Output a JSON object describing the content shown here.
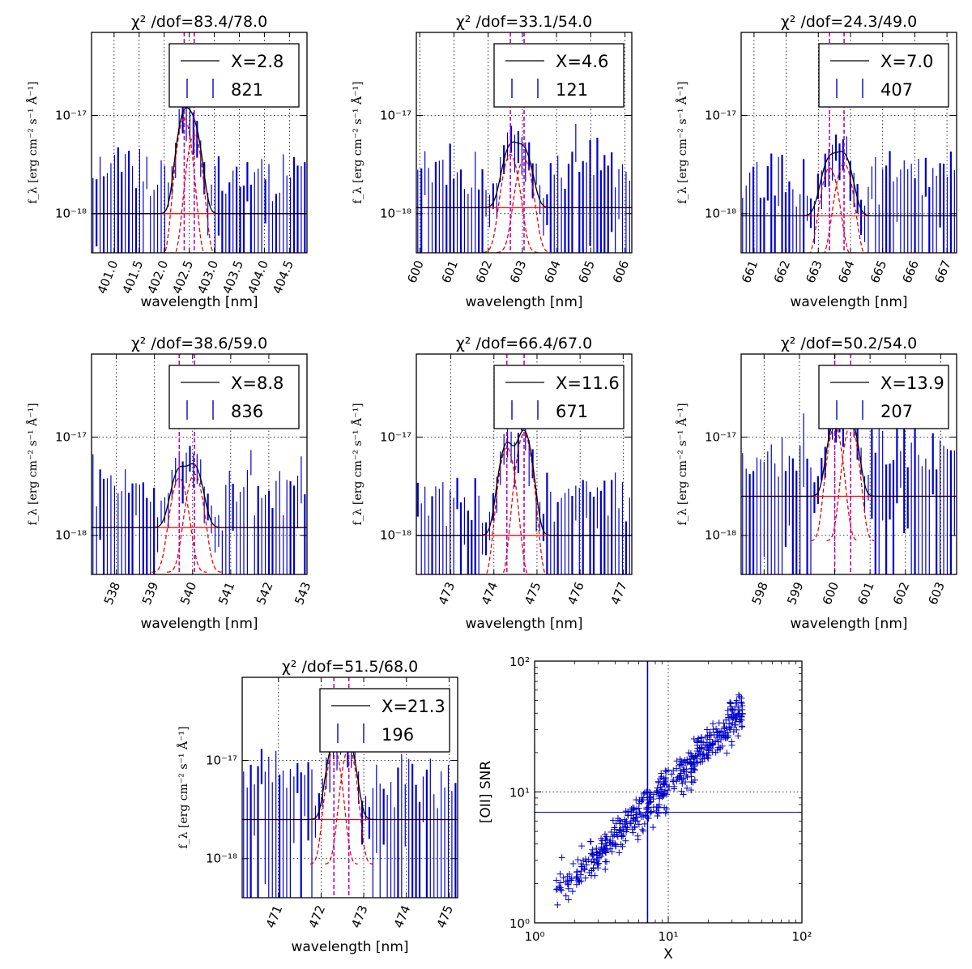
{
  "chart_data": [
    {
      "type": "line",
      "title": "χ² /dof=83.4/78.0",
      "xlabel": "wavelength [nm]",
      "ylabel": "f_λ [erg cm⁻² s⁻¹ Å⁻¹]",
      "xlim": [
        400.55,
        404.85
      ],
      "ylim_log": [
        4e-19,
        7e-17
      ],
      "yscale": "log",
      "xticks": [
        401.0,
        401.5,
        402.0,
        402.5,
        403.0,
        403.5,
        404.0,
        404.5
      ],
      "xtick_labels": [
        "401.0",
        "401.5",
        "402.0",
        "402.5",
        "403.0",
        "403.5",
        "404.0",
        "404.5"
      ],
      "ytick_labels": [
        "10⁻¹⁸",
        "10⁻¹⁷"
      ],
      "legend": {
        "model_label": "X=2.8",
        "data_label": "821",
        "placement": "upper-right"
      },
      "continuum": 1e-18,
      "line_centers": [
        402.4,
        402.6
      ],
      "amplitudes": [
        9e-18,
        6e-18
      ],
      "sigma": 0.12,
      "band": [
        402.05,
        402.95
      ],
      "seed": 11
    },
    {
      "type": "line",
      "title": "χ² /dof=33.1/54.0",
      "xlabel": "wavelength [nm]",
      "ylabel": "f_λ [erg cm⁻² s⁻¹ Å⁻¹]",
      "xlim": [
        599.9,
        606.2
      ],
      "ylim_log": [
        4e-19,
        7e-17
      ],
      "yscale": "log",
      "xticks": [
        600,
        601,
        602,
        603,
        604,
        605,
        606
      ],
      "xtick_labels": [
        "600",
        "601",
        "602",
        "603",
        "604",
        "605",
        "606"
      ],
      "ytick_labels": [
        "10⁻¹⁸",
        "10⁻¹⁷"
      ],
      "legend": {
        "model_label": "X=4.6",
        "data_label": "121",
        "placement": "upper-right"
      },
      "continuum": 1.15e-18,
      "line_centers": [
        602.65,
        603.05
      ],
      "amplitudes": [
        3.6e-18,
        3.2e-18
      ],
      "sigma": 0.2,
      "band": [
        601.9,
        603.8
      ],
      "seed": 23
    },
    {
      "type": "line",
      "title": "χ² /dof=24.3/49.0",
      "xlabel": "wavelength [nm]",
      "ylabel": "f_λ [erg cm⁻² s⁻¹ Å⁻¹]",
      "xlim": [
        660.6,
        667.3
      ],
      "ylim_log": [
        4e-19,
        7e-17
      ],
      "yscale": "log",
      "xticks": [
        661,
        662,
        663,
        664,
        665,
        666,
        667
      ],
      "xtick_labels": [
        "661",
        "662",
        "663",
        "664",
        "665",
        "666",
        "667"
      ],
      "ytick_labels": [
        "10⁻¹⁸",
        "10⁻¹⁷"
      ],
      "legend": {
        "model_label": "X=7.0",
        "data_label": "407",
        "placement": "upper-right"
      },
      "continuum": 9.5e-19,
      "line_centers": [
        663.35,
        663.8
      ],
      "amplitudes": [
        2.6e-18,
        2.9e-18
      ],
      "sigma": 0.22,
      "band": [
        662.6,
        664.5
      ],
      "seed": 37
    },
    {
      "type": "line",
      "title": "χ² /dof=38.6/59.0",
      "xlabel": "wavelength [nm]",
      "ylabel": "f_λ [erg cm⁻² s⁻¹ Å⁻¹]",
      "xlim": [
        537.35,
        543.0
      ],
      "ylim_log": [
        4e-19,
        7e-17
      ],
      "yscale": "log",
      "xticks": [
        538,
        539,
        540,
        541,
        542,
        543
      ],
      "xtick_labels": [
        "538",
        "539",
        "540",
        "541",
        "542",
        "543"
      ],
      "ytick_labels": [
        "10⁻¹⁸",
        "10⁻¹⁷"
      ],
      "legend": {
        "model_label": "X=8.8",
        "data_label": "836",
        "placement": "upper-right"
      },
      "continuum": 1.2e-18,
      "line_centers": [
        539.65,
        540.05
      ],
      "amplitudes": [
        3.4e-18,
        3.8e-18
      ],
      "sigma": 0.18,
      "band": [
        539.0,
        540.7
      ],
      "seed": 41
    },
    {
      "type": "line",
      "title": "χ² /dof=66.4/67.0",
      "xlabel": "wavelength [nm]",
      "ylabel": "f_λ [erg cm⁻² s⁻¹ Å⁻¹]",
      "xlim": [
        472.2,
        477.2
      ],
      "ylim_log": [
        4e-19,
        7e-17
      ],
      "yscale": "log",
      "xticks": [
        473,
        474,
        475,
        476,
        477
      ],
      "xtick_labels": [
        "473",
        "474",
        "475",
        "476",
        "477"
      ],
      "ytick_labels": [
        "10⁻¹⁸",
        "10⁻¹⁷"
      ],
      "legend": {
        "model_label": "X=11.6",
        "data_label": "671",
        "placement": "upper-right"
      },
      "continuum": 1e-18,
      "line_centers": [
        474.3,
        474.7
      ],
      "amplitudes": [
        7.5e-18,
        1.05e-17
      ],
      "sigma": 0.15,
      "band": [
        473.7,
        475.2
      ],
      "seed": 53
    },
    {
      "type": "line",
      "title": "χ² /dof=50.2/54.0",
      "xlabel": "wavelength [nm]",
      "ylabel": "f_λ [erg cm⁻² s⁻¹ Å⁻¹]",
      "xlim": [
        597.35,
        603.45
      ],
      "ylim_log": [
        4e-19,
        7e-17
      ],
      "yscale": "log",
      "xticks": [
        598,
        599,
        600,
        601,
        602,
        603
      ],
      "xtick_labels": [
        "598",
        "599",
        "600",
        "601",
        "602",
        "603"
      ],
      "ytick_labels": [
        "10⁻¹⁸",
        "10⁻¹⁷"
      ],
      "legend": {
        "model_label": "X=13.9",
        "data_label": "207",
        "placement": "upper-right"
      },
      "continuum": 2.5e-18,
      "line_centers": [
        600.0,
        600.45
      ],
      "amplitudes": [
        1.2e-17,
        1.25e-17
      ],
      "sigma": 0.17,
      "band": [
        599.4,
        601.0
      ],
      "seed": 67
    },
    {
      "type": "line",
      "title": "χ² /dof=51.5/68.0",
      "xlabel": "wavelength [nm]",
      "ylabel": "f_λ [erg cm⁻² s⁻¹ Å⁻¹]",
      "xlim": [
        470.15,
        475.2
      ],
      "ylim_log": [
        4e-19,
        7e-17
      ],
      "yscale": "log",
      "xticks": [
        471,
        472,
        473,
        474,
        475
      ],
      "xtick_labels": [
        "471",
        "472",
        "473",
        "474",
        "475"
      ],
      "ytick_labels": [
        "10⁻¹⁸",
        "10⁻¹⁷"
      ],
      "legend": {
        "model_label": "X=21.3",
        "data_label": "196",
        "placement": "upper-right"
      },
      "continuum": 2.5e-18,
      "line_centers": [
        472.3,
        472.65
      ],
      "amplitudes": [
        1.25e-17,
        1.25e-17
      ],
      "sigma": 0.14,
      "band": [
        471.8,
        473.2
      ],
      "seed": 79
    },
    {
      "type": "scatter",
      "xlabel": "X",
      "ylabel": "[OII] SNR",
      "xscale": "log",
      "yscale": "log",
      "xlim": [
        1,
        100
      ],
      "ylim": [
        1,
        100
      ],
      "xtick_labels": [
        "10⁰",
        "10¹",
        "10²"
      ],
      "ytick_labels": [
        "10⁰",
        "10¹",
        "10²"
      ],
      "threshold_x": 7,
      "threshold_y": 7,
      "marker": "+",
      "point_count": 500,
      "slope": 1.0,
      "intercept_log": 0.05,
      "seed": 97
    }
  ],
  "colors": {
    "data": "#0000cc",
    "model": "#000000",
    "components": "#ee0000",
    "continuum": "#ee0000",
    "line_marker": "#bf00bf",
    "scatter": "#0000cc"
  }
}
